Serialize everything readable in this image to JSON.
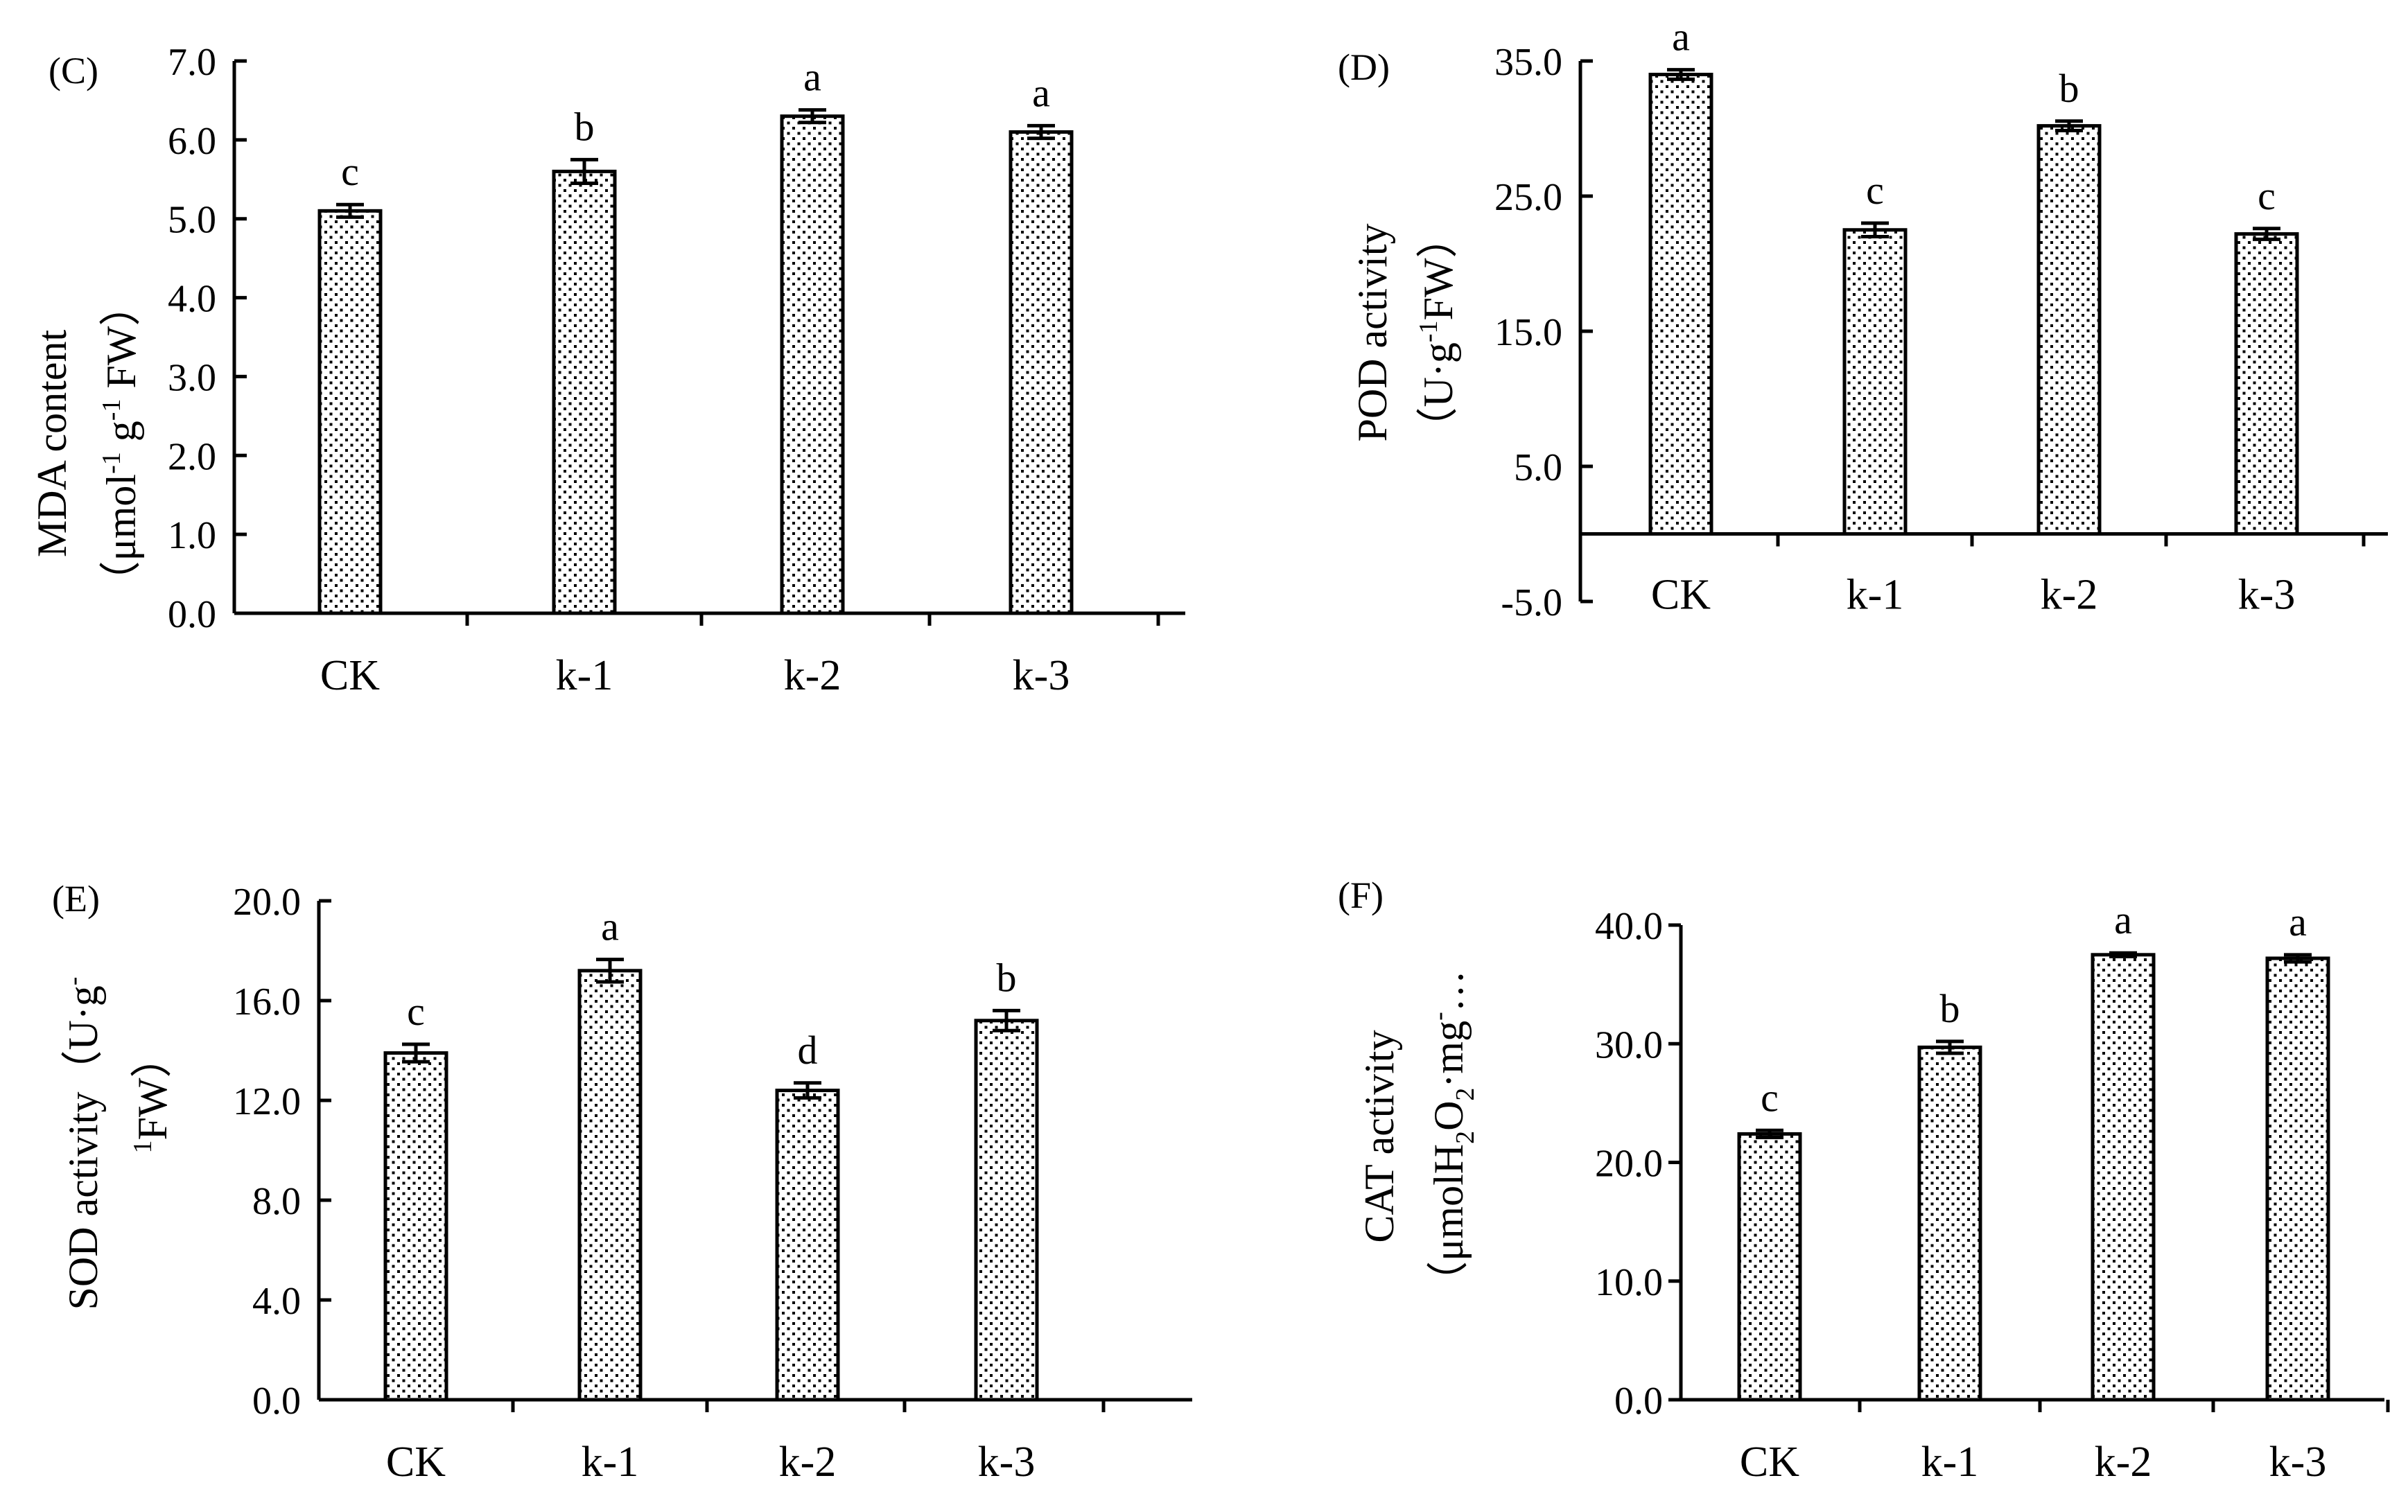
{
  "colors": {
    "ink": "#000000",
    "background": "#ffffff",
    "bar_fill": "dotted"
  },
  "chart_data": [
    {
      "panel": "(C)",
      "type": "bar",
      "categories": [
        "CK",
        "k-1",
        "k-2",
        "k-3"
      ],
      "values": [
        5.1,
        5.6,
        6.3,
        6.1
      ],
      "errors": [
        0.08,
        0.15,
        0.08,
        0.08
      ],
      "letters": [
        "c",
        "b",
        "a",
        "a"
      ],
      "ylim": [
        0.0,
        7.0
      ],
      "yticks": [
        "0.0",
        "1.0",
        "2.0",
        "3.0",
        "4.0",
        "5.0",
        "6.0",
        "7.0"
      ],
      "ytick_values": [
        0,
        1,
        2,
        3,
        4,
        5,
        6,
        7
      ],
      "ylabel_line1": "MDA  content",
      "ylabel_line2": "（μmol",
      "ylabel_sup1": "-1",
      "ylabel_mid": " g",
      "ylabel_sup2": "-1",
      "ylabel_end": " FW）",
      "xlabel": "",
      "title": ""
    },
    {
      "panel": "(D)",
      "type": "bar",
      "categories": [
        "CK",
        "k-1",
        "k-2",
        "k-3"
      ],
      "values": [
        34.0,
        22.5,
        30.2,
        22.2
      ],
      "errors": [
        0.35,
        0.5,
        0.35,
        0.4
      ],
      "letters": [
        "a",
        "c",
        "b",
        "c"
      ],
      "ylim": [
        -5.0,
        35.0
      ],
      "yticks": [
        "-5.0",
        "5.0",
        "15.0",
        "25.0",
        "35.0"
      ],
      "ytick_values": [
        -5,
        5,
        15,
        25,
        35
      ],
      "ylabel_line1": "POD  activity",
      "ylabel_line2": "（U·g",
      "ylabel_sup1": "-1",
      "ylabel_end": "FW）",
      "xlabel": "",
      "title": ""
    },
    {
      "panel": "(E)",
      "type": "bar",
      "categories": [
        "CK",
        "k-1",
        "k-2",
        "k-3"
      ],
      "values": [
        13.9,
        17.2,
        12.4,
        15.2
      ],
      "errors": [
        0.35,
        0.45,
        0.3,
        0.4
      ],
      "letters": [
        "c",
        "a",
        "d",
        "b"
      ],
      "ylim": [
        0.0,
        20.0
      ],
      "yticks": [
        "0.0",
        "4.0",
        "8.0",
        "12.0",
        "16.0",
        "20.0"
      ],
      "ytick_values": [
        0,
        4,
        8,
        12,
        16,
        20
      ],
      "ylabel_line1": "SOD activity（U·g",
      "ylabel_sup1": "-",
      "ylabel_line2_sup": "1",
      "ylabel_line2": "FW）",
      "xlabel": "",
      "title": ""
    },
    {
      "panel": "(F)",
      "type": "bar",
      "categories": [
        "CK",
        "k-1",
        "k-2",
        "k-3"
      ],
      "values": [
        22.4,
        29.7,
        37.5,
        37.2
      ],
      "errors": [
        0.3,
        0.5,
        0.15,
        0.3
      ],
      "letters": [
        "c",
        "b",
        "a",
        "a"
      ],
      "ylim": [
        0.0,
        40.0
      ],
      "yticks": [
        "0.0",
        "10.0",
        "20.0",
        "30.0",
        "40.0"
      ],
      "ytick_values": [
        0,
        10,
        20,
        30,
        40
      ],
      "ylabel_line1": "CAT activity",
      "ylabel_line2": "（μmolH",
      "ylabel_sub1": "2",
      "ylabel_mid": "O",
      "ylabel_sub2": "2",
      "ylabel_end": "·mg",
      "ylabel_sup1": "-",
      "ylabel_ellipsis": "…",
      "xlabel": "",
      "title": ""
    }
  ]
}
